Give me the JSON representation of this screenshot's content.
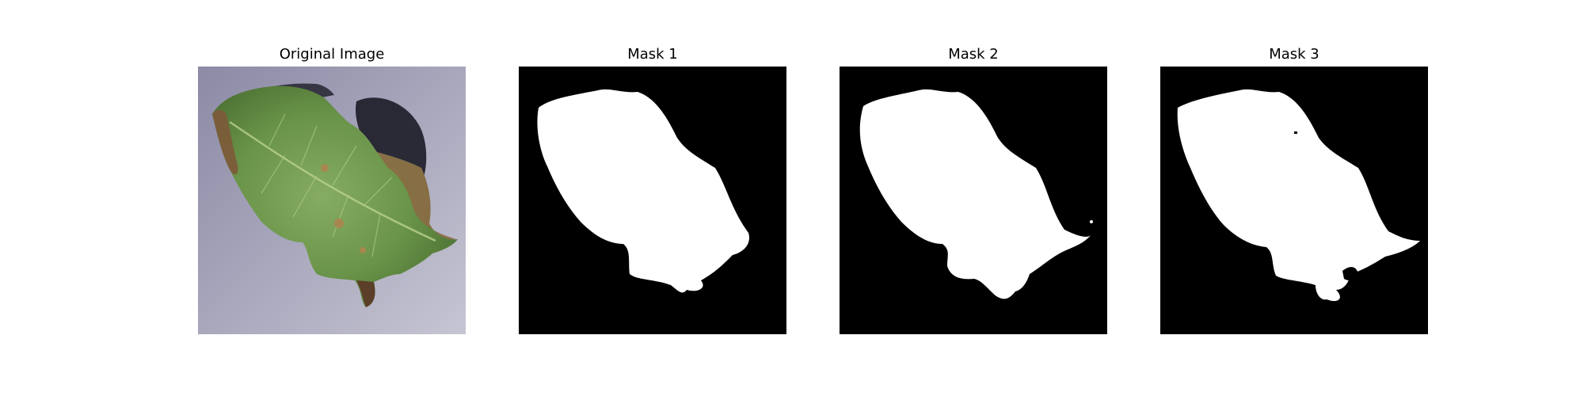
{
  "panels": [
    {
      "title": "Original Image",
      "kind": "photo"
    },
    {
      "title": "Mask 1",
      "kind": "mask"
    },
    {
      "title": "Mask 2",
      "kind": "mask"
    },
    {
      "title": "Mask 3",
      "kind": "mask"
    }
  ],
  "colors": {
    "background": "#ffffff",
    "mask_foreground": "#ffffff",
    "mask_background": "#000000",
    "leaf_green": "#6f9a4e",
    "leaf_brown": "#8b6a45",
    "photo_background": "#a3a2b8",
    "shadow": "#1f1f2a"
  }
}
